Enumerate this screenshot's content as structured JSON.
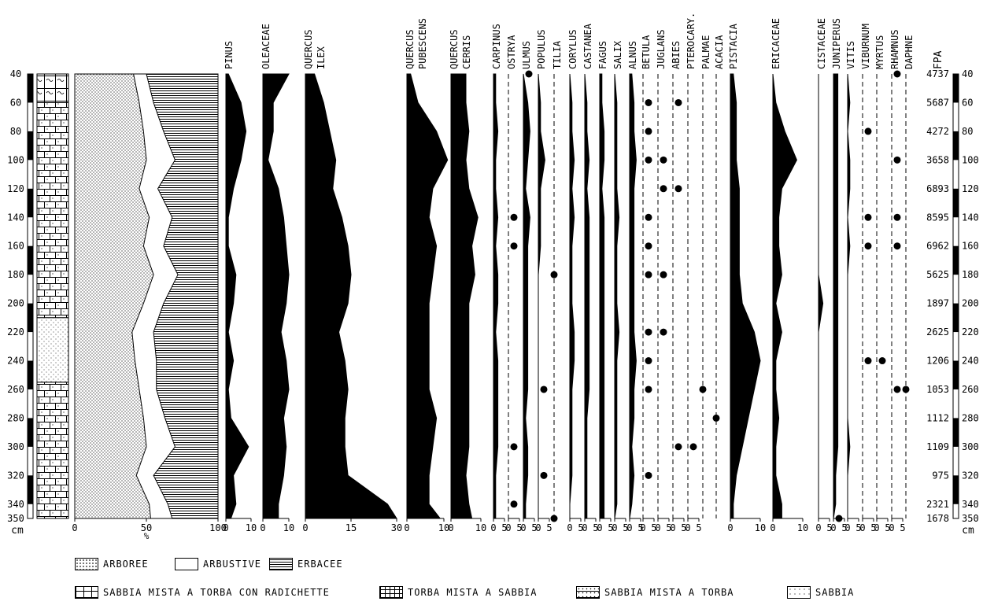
{
  "chart_data": {
    "type": "area",
    "depth_unit": "cm",
    "depths": [
      40,
      60,
      80,
      100,
      120,
      140,
      160,
      180,
      200,
      220,
      240,
      260,
      280,
      300,
      320,
      340,
      350
    ],
    "depth_ticks": [
      "40",
      "60",
      "80",
      "100",
      "120",
      "140",
      "160",
      "180",
      "200",
      "220",
      "240",
      "260",
      "280",
      "300",
      "320",
      "340",
      "350"
    ],
    "depth_unit_label": "cm",
    "summary": {
      "xlabel": "%",
      "ticks": [
        "0",
        "50",
        "100"
      ],
      "arboree_upper": [
        41,
        45,
        48,
        50,
        45,
        52,
        48,
        55,
        48,
        40,
        42,
        45,
        48,
        50,
        43,
        52,
        53
      ],
      "arbustive_upper": [
        50,
        55,
        62,
        70,
        58,
        68,
        62,
        72,
        62,
        55,
        57,
        57,
        63,
        70,
        55,
        65,
        68
      ],
      "legend": [
        "ARBOREE",
        "ARBUSTIVE",
        "ERBACEE"
      ]
    },
    "fpa": {
      "label": "FPA",
      "values": [
        "4737",
        "5687",
        "4272",
        "3658",
        "6893",
        "8595",
        "6962",
        "5625",
        "1897",
        "2625",
        "1206",
        "1053",
        "1112",
        "1109",
        "975",
        "2321",
        "1678"
      ]
    },
    "taxa": [
      {
        "name": [
          "PINUS"
        ],
        "scale": 10,
        "ticks": [
          "0",
          "10"
        ],
        "values": [
          1,
          6,
          8,
          6,
          3,
          1,
          1,
          4,
          3,
          1,
          3,
          1,
          2,
          9,
          3,
          4,
          2
        ]
      },
      {
        "name": [
          "OLEACEAE"
        ],
        "scale": 10,
        "ticks": [
          "0",
          "10"
        ],
        "values": [
          10,
          4,
          4,
          2,
          6,
          8,
          9,
          10,
          9,
          7,
          9,
          10,
          8,
          9,
          8,
          6,
          6
        ]
      },
      {
        "name": [
          "QUERCUS",
          "ILEX"
        ],
        "scale": 30,
        "ticks": [
          "0",
          "15",
          "30"
        ],
        "values": [
          3,
          6,
          8,
          10,
          9,
          12,
          14,
          15,
          14,
          11,
          13,
          14,
          13,
          13,
          14,
          27,
          30
        ]
      },
      {
        "name": [
          "QUERCUS",
          "PUBESCENS"
        ],
        "scale": 10,
        "ticks": [
          "0",
          "10"
        ],
        "values": [
          1,
          3,
          8,
          11,
          7,
          6,
          8,
          7,
          6,
          6,
          6,
          6,
          8,
          7,
          6,
          6,
          9
        ]
      },
      {
        "name": [
          "QUERCUS",
          "CERRIS"
        ],
        "scale": 10,
        "ticks": [
          "0",
          "10"
        ],
        "values": [
          5,
          5,
          6,
          5,
          6,
          9,
          7,
          8,
          6,
          6,
          6,
          6,
          6,
          6,
          5,
          6,
          7
        ]
      },
      {
        "name": [
          "CARPINUS"
        ],
        "scale": 5,
        "ticks": [
          "0",
          "5"
        ],
        "values": [
          1,
          1,
          2,
          1,
          1,
          2,
          1,
          2,
          2,
          1,
          2,
          2,
          2,
          2,
          1,
          1,
          1
        ]
      },
      {
        "name": [
          "OSTRYA"
        ],
        "scale": 5,
        "ticks": [
          "0",
          "5"
        ],
        "values": [
          0,
          0,
          0,
          0,
          0,
          0,
          0,
          0,
          0,
          0,
          0,
          0,
          0,
          0,
          0,
          0,
          0
        ],
        "dots": [
          140,
          160,
          300,
          340
        ]
      },
      {
        "name": [
          "ULMUS"
        ],
        "scale": 5,
        "ticks": [
          "0",
          "5"
        ],
        "values": [
          0,
          2,
          3,
          2,
          1,
          3,
          2,
          2,
          2,
          2,
          2,
          2,
          1,
          2,
          2,
          1,
          1
        ],
        "dots": [
          40
        ]
      },
      {
        "name": [
          "POPULUS"
        ],
        "scale": 5,
        "ticks": [
          "0",
          "5"
        ],
        "values": [
          0,
          1,
          1,
          3,
          1,
          1,
          1,
          0,
          0,
          0,
          0,
          0,
          0,
          0,
          0,
          0,
          0
        ],
        "dots": [
          260,
          320
        ]
      },
      {
        "name": [
          "TILIA"
        ],
        "scale": 5,
        "ticks": [],
        "values": [
          0,
          0,
          0,
          0,
          0,
          0,
          0,
          0,
          0,
          0,
          0,
          0,
          0,
          0,
          0,
          0,
          0
        ],
        "dots": [
          180,
          350
        ]
      },
      {
        "name": [
          "CORYLUS"
        ],
        "scale": 5,
        "ticks": [
          "0",
          "5"
        ],
        "values": [
          0,
          1,
          1,
          2,
          1,
          2,
          1,
          1,
          1,
          2,
          2,
          1,
          1,
          1,
          1,
          0,
          0
        ]
      },
      {
        "name": [
          "CASTANEA"
        ],
        "scale": 5,
        "ticks": [
          "0",
          "5"
        ],
        "values": [
          0,
          1,
          1,
          2,
          1,
          2,
          2,
          2,
          2,
          2,
          2,
          2,
          1,
          1,
          1,
          1,
          1
        ]
      },
      {
        "name": [
          "FAGUS"
        ],
        "scale": 5,
        "ticks": [
          "0",
          "5"
        ],
        "values": [
          1,
          1,
          2,
          2,
          1,
          2,
          2,
          2,
          2,
          2,
          2,
          2,
          2,
          2,
          2,
          2,
          2
        ]
      },
      {
        "name": [
          "SALIX"
        ],
        "scale": 5,
        "ticks": [
          "0",
          "5"
        ],
        "values": [
          0,
          1,
          1,
          1,
          1,
          2,
          1,
          1,
          1,
          2,
          1,
          1,
          1,
          1,
          1,
          1,
          0
        ]
      },
      {
        "name": [
          "ALNUS"
        ],
        "scale": 5,
        "ticks": [
          "0",
          "5"
        ],
        "values": [
          1,
          2,
          2,
          3,
          2,
          2,
          2,
          2,
          2,
          2,
          3,
          2,
          2,
          1,
          2,
          1,
          0
        ]
      },
      {
        "name": [
          "BETULA"
        ],
        "scale": 5,
        "ticks": [
          "0",
          "5"
        ],
        "values": [
          0,
          0,
          0,
          0,
          0,
          0,
          0,
          0,
          0,
          0,
          0,
          0,
          0,
          0,
          0,
          0,
          0
        ],
        "dots": [
          60,
          80,
          100,
          140,
          160,
          180,
          220,
          240,
          260,
          320
        ]
      },
      {
        "name": [
          "JUGLANS"
        ],
        "scale": 5,
        "ticks": [
          "0",
          "5"
        ],
        "values": [
          0,
          0,
          0,
          0,
          0,
          0,
          0,
          0,
          0,
          0,
          0,
          0,
          0,
          0,
          0,
          0,
          0
        ],
        "dots": [
          100,
          120,
          180,
          220
        ]
      },
      {
        "name": [
          "ABIES"
        ],
        "scale": 5,
        "ticks": [
          "0",
          "5"
        ],
        "values": [
          0,
          0,
          0,
          0,
          0,
          0,
          0,
          0,
          0,
          0,
          0,
          0,
          0,
          0,
          0,
          0,
          0
        ],
        "dots": [
          60,
          120,
          300
        ]
      },
      {
        "name": [
          "PTEROCARY."
        ],
        "scale": 5,
        "ticks": [
          "0",
          "5"
        ],
        "values": [
          0,
          0,
          0,
          0,
          0,
          0,
          0,
          0,
          0,
          0,
          0,
          0,
          0,
          0,
          0,
          0,
          0
        ],
        "dots": [
          300
        ]
      },
      {
        "name": [
          "PALMAE"
        ],
        "scale": 5,
        "ticks": [],
        "values": [
          0,
          0,
          0,
          0,
          0,
          0,
          0,
          0,
          0,
          0,
          0,
          0,
          0,
          0,
          0,
          0,
          0
        ],
        "dots": [
          260
        ]
      },
      {
        "name": [
          "ACACIA"
        ],
        "scale": 5,
        "ticks": [],
        "values": [
          0,
          0,
          0,
          0,
          0,
          0,
          0,
          0,
          0,
          0,
          0,
          0,
          0,
          0,
          0,
          0,
          0
        ],
        "dots": [
          280
        ]
      },
      {
        "name": [
          "PISTACIA"
        ],
        "scale": 10,
        "ticks": [
          "0",
          "10"
        ],
        "values": [
          1,
          2,
          2,
          2,
          3,
          3,
          3,
          3,
          4,
          8,
          10,
          8,
          6,
          4,
          2,
          1,
          1
        ]
      },
      {
        "name": [
          "ERICACEAE"
        ],
        "scale": 10,
        "ticks": [
          "0",
          "10"
        ],
        "values": [
          0,
          1,
          4,
          8,
          3,
          2,
          2,
          3,
          1,
          3,
          1,
          1,
          2,
          1,
          1,
          3,
          3
        ]
      },
      {
        "name": [
          "CISTACEAE"
        ],
        "scale": 5,
        "ticks": [
          "0",
          "5"
        ],
        "values": [
          0,
          0,
          0,
          0,
          0,
          0,
          0,
          0,
          2,
          0,
          0,
          0,
          0,
          0,
          0,
          0,
          0
        ]
      },
      {
        "name": [
          "JUNIPERUS"
        ],
        "scale": 5,
        "ticks": [
          "0",
          "5"
        ],
        "values": [
          2,
          2,
          2,
          2,
          2,
          2,
          2,
          2,
          2,
          2,
          2,
          2,
          2,
          2,
          1,
          1,
          0
        ],
        "dots": [
          350
        ]
      },
      {
        "name": [
          "VITIS"
        ],
        "scale": 5,
        "ticks": [
          "0",
          "5"
        ],
        "values": [
          0,
          1,
          0,
          1,
          1,
          0,
          1,
          0,
          0,
          0,
          0,
          0,
          0,
          1,
          0,
          0,
          0
        ]
      },
      {
        "name": [
          "VIBURNUM"
        ],
        "scale": 5,
        "ticks": [
          "0",
          "5"
        ],
        "values": [
          0,
          0,
          0,
          0,
          0,
          0,
          0,
          0,
          0,
          0,
          0,
          0,
          0,
          0,
          0,
          0,
          0
        ],
        "dots": [
          80,
          140,
          160,
          240
        ]
      },
      {
        "name": [
          "MYRTUS"
        ],
        "scale": 5,
        "ticks": [
          "0",
          "5"
        ],
        "values": [
          0,
          0,
          0,
          0,
          0,
          0,
          0,
          0,
          0,
          0,
          0,
          0,
          0,
          0,
          0,
          0,
          0
        ],
        "dots": [
          240
        ]
      },
      {
        "name": [
          "RHAMNUS"
        ],
        "scale": 5,
        "ticks": [
          "0",
          "5"
        ],
        "values": [
          0,
          0,
          0,
          0,
          0,
          0,
          0,
          0,
          0,
          0,
          0,
          0,
          0,
          0,
          0,
          0,
          0
        ],
        "dots": [
          40,
          100,
          140,
          160,
          260
        ]
      },
      {
        "name": [
          "DAPHNE"
        ],
        "scale": 5,
        "ticks": [],
        "values": [
          0,
          0,
          0,
          0,
          0,
          0,
          0,
          0,
          0,
          0,
          0,
          0,
          0,
          0,
          0,
          0,
          0
        ],
        "dots": [
          260
        ]
      }
    ]
  },
  "legend_top": {
    "arboree": "ARBOREE",
    "arbustive": "ARBUSTIVE",
    "erbacee": "ERBACEE"
  },
  "legend_bottom": {
    "sabbia_radichette": "SABBIA MISTA A TORBA CON RADICHETTE",
    "torba_sabbia": "TORBA MISTA A SABBIA",
    "sabbia_torba": "SABBIA MISTA A TORBA",
    "sabbia": "SABBIA"
  }
}
